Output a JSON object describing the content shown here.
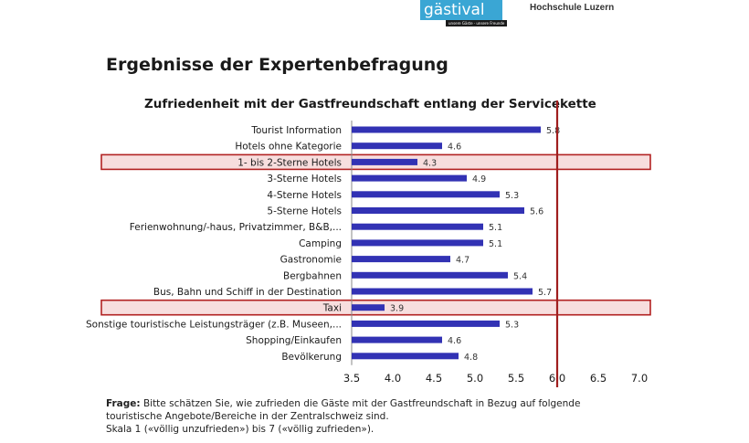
{
  "header": {
    "logo_text": "gästival",
    "logo_tagline": "unsere Gäste · unsere Freunde",
    "institution": "Hochschule Luzern"
  },
  "slide_title": "Ergebnisse der Expertenbefragung",
  "colors": {
    "bar": "#3232b4",
    "threshold_line": "#a01e1e",
    "highlight_border": "#b22222",
    "highlight_fill": "#f7dede",
    "axis": "#888888",
    "text": "#1a1a1a"
  },
  "chart_data": {
    "type": "bar",
    "orientation": "horizontal",
    "title": "Zufriedenheit mit der Gastfreundschaft entlang der Servicekette",
    "categories": [
      "Tourist Information",
      "Hotels ohne Kategorie",
      "1- bis 2-Sterne Hotels",
      "3-Sterne Hotels",
      "4-Sterne Hotels",
      "5-Sterne Hotels",
      "Ferienwohnung/-haus, Privatzimmer, B&B,...",
      "Camping",
      "Gastronomie",
      "Bergbahnen",
      "Bus, Bahn und Schiff in der Destination",
      "Taxi",
      "Sonstige touristische Leistungsträger (z.B. Museen,...",
      "Shopping/Einkaufen",
      "Bevölkerung"
    ],
    "values": [
      5.8,
      4.6,
      4.3,
      4.9,
      5.3,
      5.6,
      5.1,
      5.1,
      4.7,
      5.4,
      5.7,
      3.9,
      5.3,
      4.6,
      4.8
    ],
    "value_labels": [
      "5.8",
      "4.6",
      "4.3",
      "4.9",
      "5.3",
      "5.6",
      "5.1",
      "5.1",
      "4.7",
      "5.4",
      "5.7",
      "3.9",
      "5.3",
      "4.6",
      "4.8"
    ],
    "xlim": [
      3.5,
      7.0
    ],
    "xticks": [
      3.5,
      4.0,
      4.5,
      5.0,
      5.5,
      6.0,
      6.5,
      7.0
    ],
    "xtick_labels": [
      "3.5",
      "4.0",
      "4.5",
      "5.0",
      "5.5",
      "6.0",
      "6.5",
      "7.0"
    ],
    "threshold": 6.0,
    "highlighted": [
      "1- bis 2-Sterne Hotels",
      "Taxi"
    ],
    "xlabel": "",
    "ylabel": "",
    "grid": false
  },
  "footnote": {
    "question_label": "Frage:",
    "line1": " Bitte schätzen Sie, wie zufrieden die Gäste mit der Gastfreundschaft in Bezug auf folgende",
    "line2": "touristische Angebote/Bereiche in der Zentralschweiz sind.",
    "line3": "Skala 1 («völlig unzufrieden») bis 7 («völlig zufrieden»)."
  }
}
